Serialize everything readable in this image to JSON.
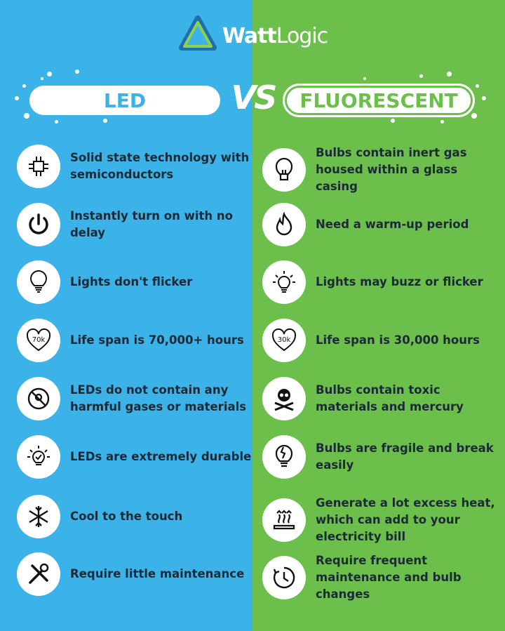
{
  "brand": {
    "name_bold": "Watt",
    "name_light": "Logic"
  },
  "header": {
    "left_title": "LED",
    "vs": "VS",
    "right_title": "FLUORESCENT"
  },
  "colors": {
    "led": "#3bb3e8",
    "fluorescent": "#6cbf4b",
    "text": "#1b2a36"
  },
  "led": [
    {
      "icon": "circuit-chip-icon",
      "text": "Solid state technology with semiconductors"
    },
    {
      "icon": "power-icon",
      "text": "Instantly turn on with no delay"
    },
    {
      "icon": "lightbulb-icon",
      "text": "Lights don't flicker"
    },
    {
      "icon": "heart-70k-icon",
      "badge": "70k",
      "text": "Life span is 70,000+ hours"
    },
    {
      "icon": "no-hazard-icon",
      "text": "LEDs do not contain any harmful gases or materials"
    },
    {
      "icon": "bulb-check-icon",
      "text": "LEDs are extremely durable"
    },
    {
      "icon": "snowflake-icon",
      "text": "Cool to the touch"
    },
    {
      "icon": "tools-icon",
      "text": "Require little maintenance"
    }
  ],
  "fluorescent": [
    {
      "icon": "bulb-filament-icon",
      "text": "Bulbs contain inert gas housed within a glass casing"
    },
    {
      "icon": "flame-icon",
      "text": "Need a warm-up period"
    },
    {
      "icon": "bulb-glow-icon",
      "text": "Lights may buzz or flicker"
    },
    {
      "icon": "heart-30k-icon",
      "badge": "30k",
      "text": "Life span is 30,000 hours"
    },
    {
      "icon": "skull-crossbones-icon",
      "text": "Bulbs contain toxic materials and mercury"
    },
    {
      "icon": "broken-bulb-icon",
      "text": "Bulbs are fragile and break easily"
    },
    {
      "icon": "heat-icon",
      "text": "Generate a lot excess heat, which can add to your electricity bill"
    },
    {
      "icon": "clock-icon",
      "text": "Require frequent maintenance and bulb changes"
    }
  ]
}
